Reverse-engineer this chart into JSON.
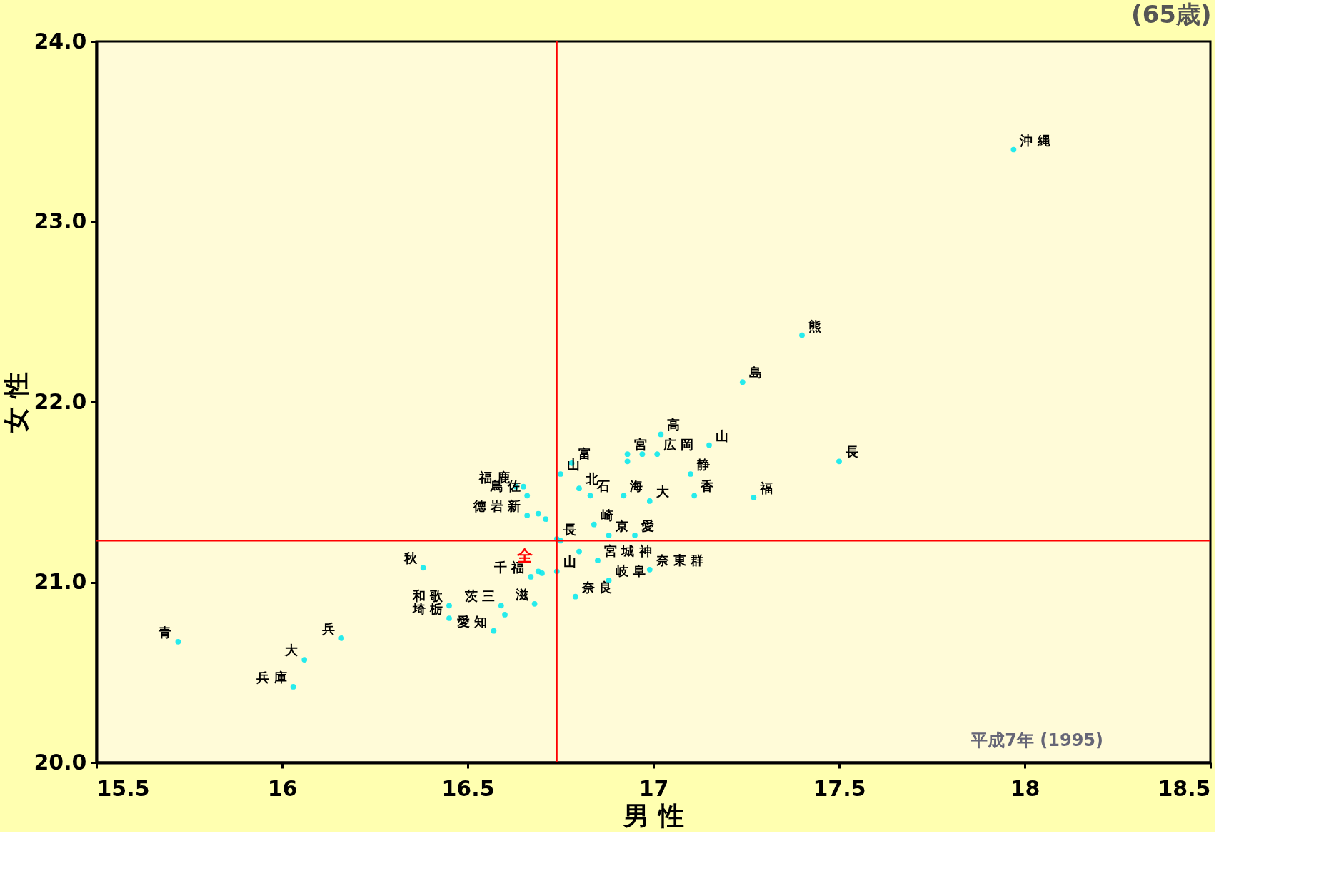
{
  "chart_data": {
    "type": "scatter",
    "title": "(65歳)",
    "xlabel": "男 性",
    "ylabel": "女 性",
    "x": [
      17.97,
      17.4,
      17.24,
      17.5,
      17.15,
      17.02,
      16.93,
      16.97,
      17.01,
      16.93,
      17.1,
      16.78,
      16.75,
      16.63,
      16.65,
      16.66,
      16.8,
      16.83,
      16.92,
      16.99,
      17.11,
      17.27,
      16.66,
      16.69,
      16.71,
      16.84,
      16.88,
      16.95,
      16.74,
      16.75,
      16.8,
      16.85,
      16.99,
      16.74,
      16.7,
      16.69,
      16.67,
      16.88,
      16.38,
      16.79,
      16.68,
      16.59,
      16.6,
      16.45,
      16.45,
      16.57,
      16.16,
      15.72,
      16.06,
      16.03
    ],
    "series": [
      {
        "color": "#00e8f0",
        "values": [
          23.4,
          22.37,
          22.11,
          21.67,
          21.76,
          21.82,
          21.71,
          21.71,
          21.71,
          21.67,
          21.6,
          21.66,
          21.6,
          21.53,
          21.53,
          21.48,
          21.52,
          21.48,
          21.48,
          21.45,
          21.48,
          21.47,
          21.37,
          21.38,
          21.35,
          21.32,
          21.26,
          21.26,
          21.24,
          21.23,
          21.17,
          21.12,
          21.07,
          21.06,
          21.05,
          21.06,
          21.03,
          21.01,
          21.08,
          20.92,
          20.88,
          20.87,
          20.82,
          20.87,
          20.8,
          20.73,
          20.69,
          20.67,
          20.57,
          20.42
        ]
      }
    ],
    "value_labels": [
      "沖 縄",
      "熊",
      "島",
      "長",
      "山",
      "高",
      "宮",
      null,
      "広 岡",
      null,
      "静",
      "富",
      "山",
      "福 鹿",
      null,
      "鳥 佐",
      "北",
      "石",
      "海",
      "大",
      "香",
      "福",
      "徳 岩 新",
      null,
      null,
      "崎",
      "京",
      "愛",
      "長",
      null,
      null,
      "宮 城 神",
      "奈 東 群",
      "山",
      null,
      null,
      "千 福",
      "岐 阜",
      "秋",
      "奈 良",
      "滋",
      "茨 三",
      null,
      "和 歌",
      "埼 栃",
      "愛 知",
      "兵",
      "青",
      "大",
      "兵 庫"
    ],
    "marker": "circle",
    "grid": false,
    "xlim": [
      15.5,
      18.5
    ],
    "xticks": [
      15.5,
      16,
      16.5,
      17,
      17.5,
      18,
      18.5
    ],
    "ylim": [
      20.0,
      24.0
    ],
    "yticks": [
      {
        "value": 20,
        "label": "20.0"
      },
      {
        "value": 21,
        "label": "21.0"
      },
      {
        "value": 22,
        "label": "22.0"
      },
      {
        "value": 23,
        "label": "23.0"
      },
      {
        "value": 24,
        "label": "24.0"
      }
    ],
    "ref_lines": [
      {
        "axis": "x",
        "value": 16.74,
        "label": null,
        "color": "#ff0000"
      },
      {
        "axis": "y",
        "value": 21.23,
        "label": "全",
        "color": "#ff0000"
      }
    ],
    "annotations": [
      "平成7年 (1995)"
    ]
  }
}
